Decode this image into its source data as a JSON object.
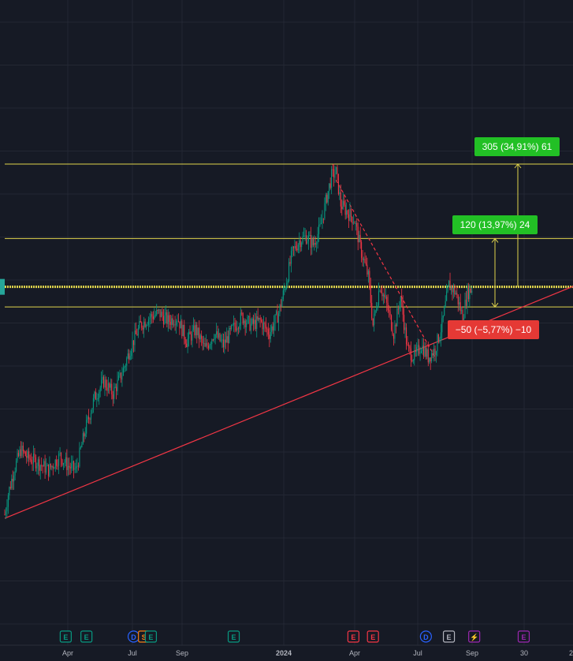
{
  "chart_data": {
    "type": "candlestick",
    "x_tick_labels": [
      "Apr",
      "Jul",
      "Sep",
      "2024",
      "Apr",
      "Jul",
      "Sep",
      "30"
    ],
    "x_tick_bold": "2024",
    "x_cut_off_label": "2",
    "price_levels": {
      "top": 1180,
      "upper": 995,
      "current": 875,
      "lower": 825,
      "bottom_low": 310
    },
    "y_range": [
      0,
      1550
    ],
    "price_path": [
      {
        "t": 0,
        "p": 310
      },
      {
        "t": 3,
        "p": 360
      },
      {
        "t": 8,
        "p": 420
      },
      {
        "t": 14,
        "p": 470
      },
      {
        "t": 20,
        "p": 450
      },
      {
        "t": 28,
        "p": 440
      },
      {
        "t": 38,
        "p": 420
      },
      {
        "t": 48,
        "p": 455
      },
      {
        "t": 55,
        "p": 430
      },
      {
        "t": 62,
        "p": 420
      },
      {
        "t": 70,
        "p": 520
      },
      {
        "t": 78,
        "p": 600
      },
      {
        "t": 86,
        "p": 640
      },
      {
        "t": 94,
        "p": 610
      },
      {
        "t": 102,
        "p": 660
      },
      {
        "t": 110,
        "p": 730
      },
      {
        "t": 118,
        "p": 780
      },
      {
        "t": 126,
        "p": 800
      },
      {
        "t": 134,
        "p": 810
      },
      {
        "t": 142,
        "p": 790
      },
      {
        "t": 150,
        "p": 800
      },
      {
        "t": 158,
        "p": 740
      },
      {
        "t": 166,
        "p": 770
      },
      {
        "t": 174,
        "p": 720
      },
      {
        "t": 182,
        "p": 760
      },
      {
        "t": 190,
        "p": 730
      },
      {
        "t": 198,
        "p": 770
      },
      {
        "t": 206,
        "p": 800
      },
      {
        "t": 214,
        "p": 780
      },
      {
        "t": 222,
        "p": 790
      },
      {
        "t": 230,
        "p": 760
      },
      {
        "t": 238,
        "p": 810
      },
      {
        "t": 244,
        "p": 880
      },
      {
        "t": 250,
        "p": 960
      },
      {
        "t": 256,
        "p": 990
      },
      {
        "t": 262,
        "p": 1000
      },
      {
        "t": 268,
        "p": 980
      },
      {
        "t": 274,
        "p": 1020
      },
      {
        "t": 280,
        "p": 1100
      },
      {
        "t": 284,
        "p": 1150
      },
      {
        "t": 288,
        "p": 1160
      },
      {
        "t": 292,
        "p": 1080
      },
      {
        "t": 298,
        "p": 1060
      },
      {
        "t": 304,
        "p": 1040
      },
      {
        "t": 310,
        "p": 960
      },
      {
        "t": 316,
        "p": 900
      },
      {
        "t": 320,
        "p": 780
      },
      {
        "t": 326,
        "p": 880
      },
      {
        "t": 332,
        "p": 830
      },
      {
        "t": 338,
        "p": 760
      },
      {
        "t": 344,
        "p": 850
      },
      {
        "t": 350,
        "p": 720
      },
      {
        "t": 356,
        "p": 700
      },
      {
        "t": 362,
        "p": 730
      },
      {
        "t": 368,
        "p": 700
      },
      {
        "t": 374,
        "p": 720
      },
      {
        "t": 380,
        "p": 780
      },
      {
        "t": 386,
        "p": 880
      },
      {
        "t": 392,
        "p": 860
      },
      {
        "t": 398,
        "p": 800
      },
      {
        "t": 402,
        "p": 860
      },
      {
        "t": 406,
        "p": 870
      }
    ],
    "annotations": {
      "upper_measure": "305 (34,91%) 61",
      "mid_measure": "120 (13,97%) 24",
      "lower_measure": "−50 (−5,77%) −10"
    },
    "trendline": {
      "from": {
        "t": 0,
        "p": 300
      },
      "to": {
        "t": 480,
        "p": 860
      }
    },
    "dashed_resistance": {
      "from": {
        "t": 288,
        "p": 1140
      },
      "to": {
        "t": 374,
        "p": 700
      }
    },
    "events": [
      {
        "t": 53,
        "letter": "E",
        "color": "#089981"
      },
      {
        "t": 71,
        "letter": "E",
        "color": "#089981"
      },
      {
        "t": 112,
        "letter": "D",
        "color": "#2962ff"
      },
      {
        "t": 121,
        "letter": "S",
        "color": "#f57f17"
      },
      {
        "t": 127,
        "letter": "E",
        "color": "#089981"
      },
      {
        "t": 199,
        "letter": "E",
        "color": "#089981"
      },
      {
        "t": 303,
        "letter": "E",
        "color": "#f23645"
      },
      {
        "t": 320,
        "letter": "E",
        "color": "#f23645"
      },
      {
        "t": 366,
        "letter": "D",
        "color": "#2962ff"
      },
      {
        "t": 386,
        "letter": "E",
        "color": "#b2b5be"
      },
      {
        "t": 408,
        "letter": "⚡",
        "color": "#9c27b0"
      },
      {
        "t": 451,
        "letter": "E",
        "color": "#9c27b0"
      }
    ],
    "colors": {
      "background": "#161a25",
      "grid": "#232733",
      "up": "#089981",
      "down": "#f23645",
      "level_line": "#e0d44c",
      "trendline": "#f23645",
      "label_up": "#22c025",
      "label_down": "#e53935",
      "current_price_marker": "#26a69a"
    }
  }
}
